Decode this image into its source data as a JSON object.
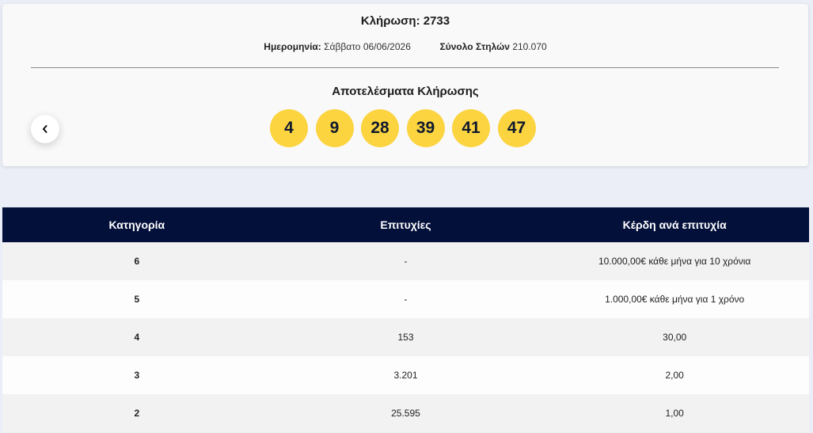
{
  "header": {
    "title": "Κλήρωση: 2733",
    "date_label": "Ημερομηνία:",
    "date": "Σάββατο 06/06/2026",
    "columns_label": "Σύνολο Στηλών",
    "columns": "210.070"
  },
  "results": {
    "title": "Αποτελέσματα Κλήρωσης",
    "numbers": [
      "4",
      "9",
      "28",
      "39",
      "41",
      "47"
    ]
  },
  "table": {
    "headers": [
      "Κατηγορία",
      "Επιτυχίες",
      "Κέρδη ανά επιτυχία"
    ],
    "rows": [
      [
        "6",
        "-",
        "10.000,00€ κάθε μήνα για 10 χρόνια"
      ],
      [
        "5",
        "-",
        "1.000,00€ κάθε μήνα για 1 χρόνο"
      ],
      [
        "4",
        "153",
        "30,00"
      ],
      [
        "3",
        "3.201",
        "2,00"
      ],
      [
        "2",
        "25.595",
        "1,00"
      ]
    ]
  }
}
